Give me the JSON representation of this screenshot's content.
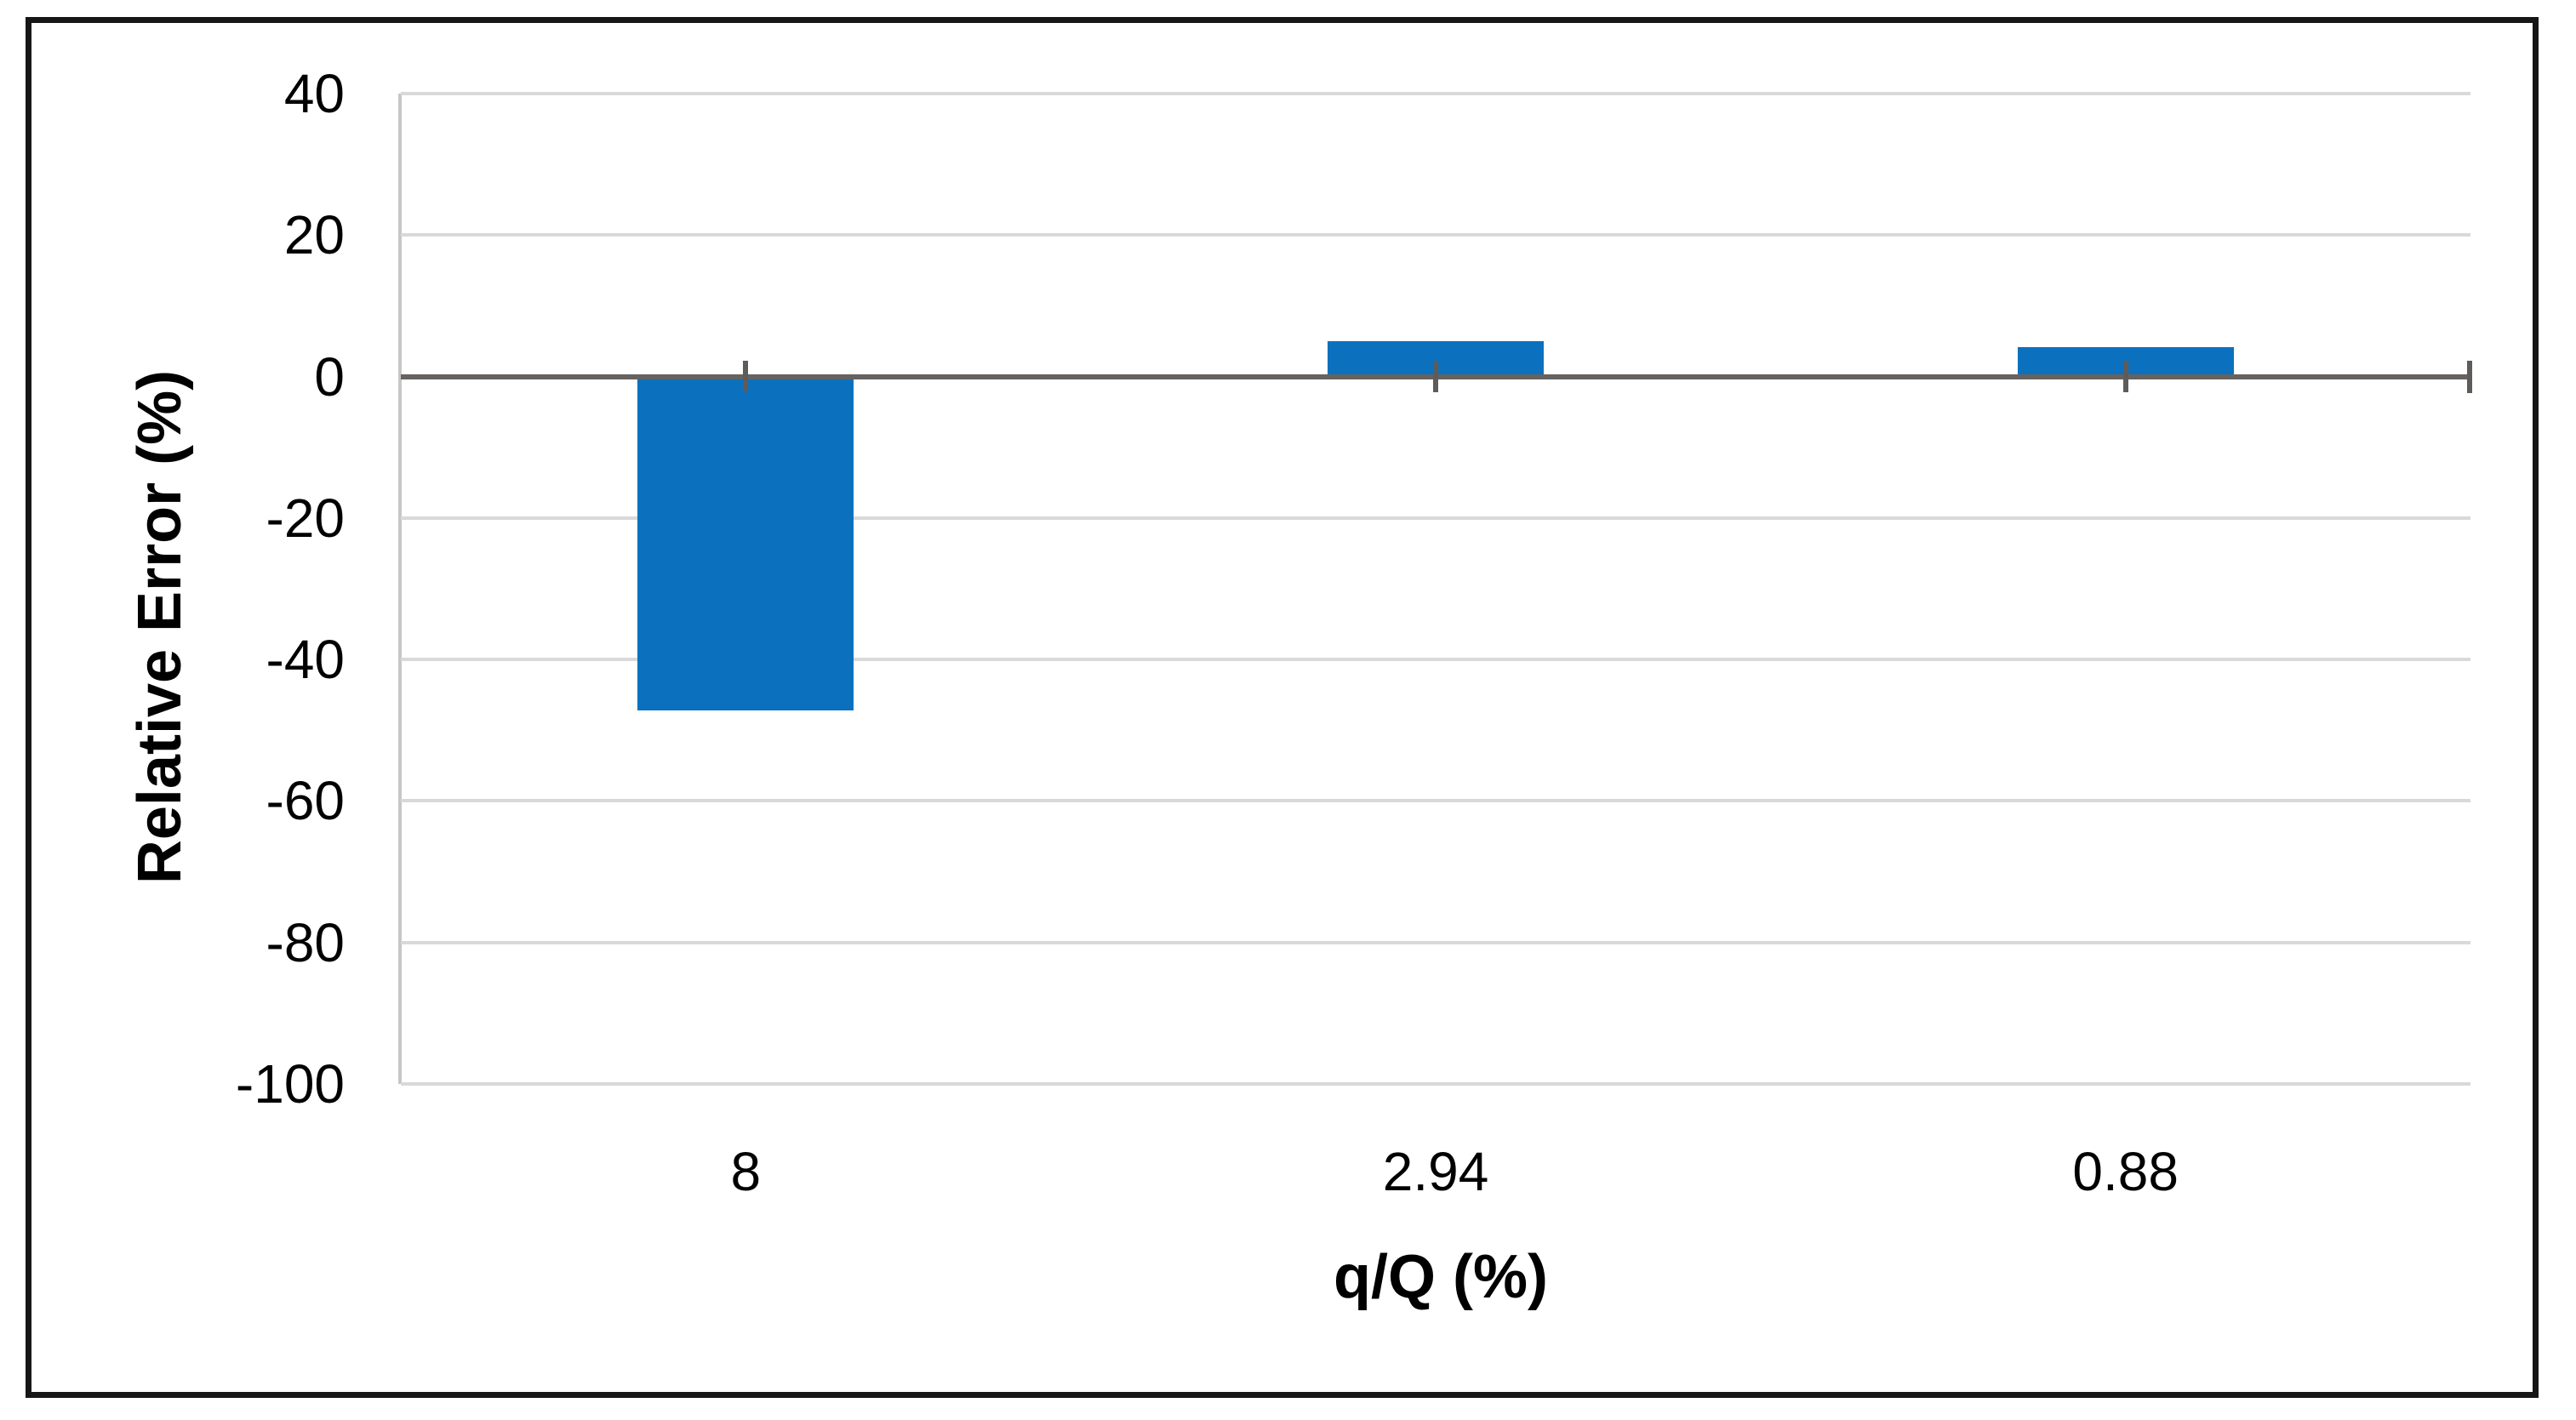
{
  "chart_data": {
    "type": "bar",
    "title": "",
    "categories": [
      "8",
      "2.94",
      "0.88"
    ],
    "values": [
      -47.2,
      5.0,
      4.2
    ],
    "series_name": "Relative Error",
    "xlabel": "q/Q (%)",
    "ylabel": "Relative Error (%)",
    "ylim": [
      -100,
      40
    ],
    "yticks": [
      40,
      20,
      0,
      -20,
      -40,
      -60,
      -80,
      -100
    ],
    "ytick_labels": [
      "40",
      "20",
      "0",
      "-20",
      "-40",
      "-60",
      "-80",
      "-100"
    ],
    "grid": "horizontal",
    "legend": "none",
    "error_bars": {
      "drawn_at_value": 0,
      "plus": 2.2,
      "minus": 2.2
    },
    "axis_end_tick_at_right": true,
    "colors": {
      "bar": "#0b71be",
      "gridline": "#d9d9d9",
      "zero_axis_line": "#666260",
      "error_bar": "#5f5b58",
      "text": "#000000",
      "outer_border": "#161616"
    }
  }
}
